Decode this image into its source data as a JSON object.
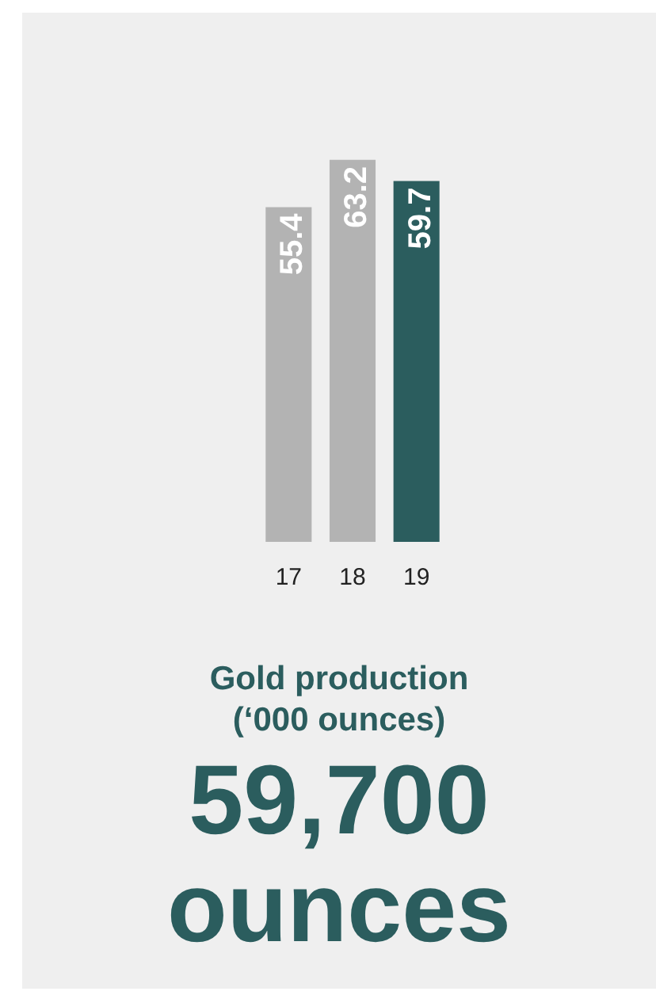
{
  "chart_data": {
    "type": "bar",
    "title": "Gold production (‘000 ounces)",
    "subtitle": "59,700 ounces",
    "categories": [
      "17",
      "18",
      "19"
    ],
    "values": [
      55.4,
      63.2,
      59.7
    ],
    "colors": [
      "#b3b3b3",
      "#b3b3b3",
      "#2b5d5e"
    ],
    "tick_labels": "x",
    "grid": false,
    "legend": false,
    "data_labels": true
  }
}
